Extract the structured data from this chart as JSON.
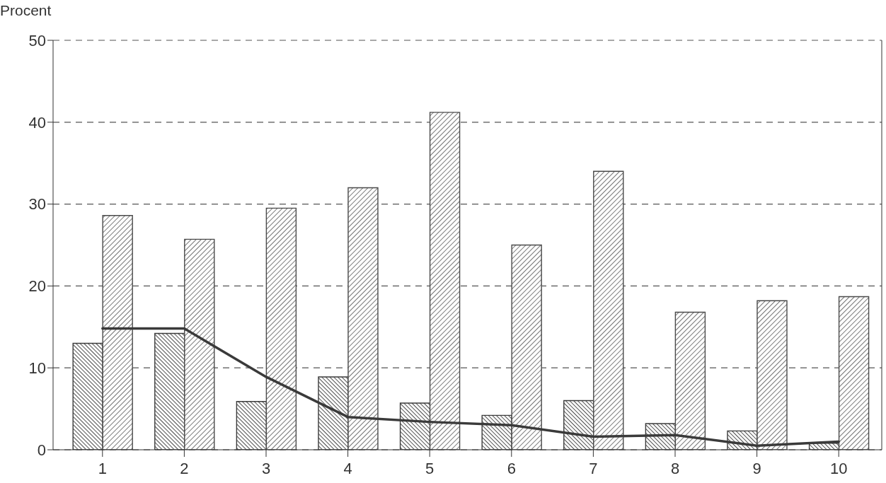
{
  "chart_data": {
    "type": "bar",
    "ylabel": "Procent",
    "categories": [
      "1",
      "2",
      "3",
      "4",
      "5",
      "6",
      "7",
      "8",
      "9",
      "10"
    ],
    "series": [
      {
        "color": "#3c3c3c",
        "values": [
          13.0,
          14.2,
          5.9,
          8.9,
          5.7,
          4.2,
          6.0,
          3.2,
          2.3,
          0.8
        ]
      },
      {
        "color": "#4a4a4a",
        "values": [
          28.6,
          25.7,
          29.5,
          32.0,
          41.2,
          25.0,
          34.0,
          16.8,
          18.2,
          18.7
        ]
      },
      {
        "type": "line",
        "color": "#3a3a3a",
        "values": [
          14.8,
          14.8,
          8.9,
          4.0,
          3.4,
          3.0,
          1.6,
          1.8,
          0.5,
          1.0
        ]
      }
    ],
    "ylim": [
      0,
      50
    ],
    "yticks": [
      0,
      10,
      20,
      30,
      40,
      50
    ],
    "grid": "y",
    "marker": "none",
    "line_style": "solid"
  }
}
